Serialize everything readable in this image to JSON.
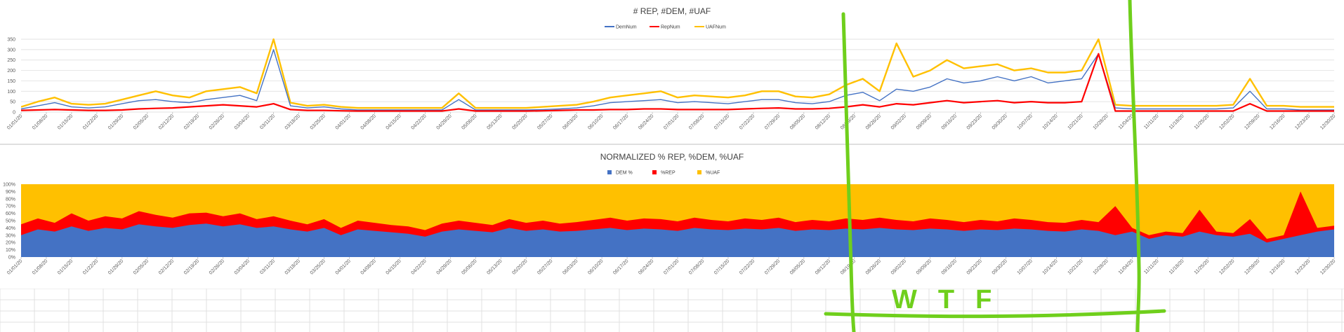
{
  "colors": {
    "dem": "#4472c4",
    "rep": "#ff0000",
    "uaf": "#ffc000",
    "annotation": "#6fcf1c",
    "grid": "#d9d9d9",
    "cellgrid": "#e0e0e0"
  },
  "annotation_text": "WTF",
  "chart_data": [
    {
      "type": "line",
      "title": "# REP, #DEM, #UAF",
      "ylim": [
        0,
        350
      ],
      "yticks": [
        "0",
        "50",
        "100",
        "150",
        "200",
        "250",
        "300",
        "350"
      ],
      "x_tick_labels": [
        "01/01/20",
        "01/08/20",
        "01/15/20",
        "01/22/20",
        "01/29/20",
        "02/05/20",
        "02/12/20",
        "02/19/20",
        "02/26/20",
        "03/04/20",
        "03/11/20",
        "03/18/20",
        "03/25/20",
        "04/01/20",
        "04/08/20",
        "04/15/20",
        "04/22/20",
        "04/29/20",
        "05/06/20",
        "05/13/20",
        "05/20/20",
        "05/27/20",
        "06/03/20",
        "06/10/20",
        "06/17/20",
        "06/24/20",
        "07/01/20",
        "07/08/20",
        "07/15/20",
        "07/22/20",
        "07/29/20",
        "08/05/20",
        "08/12/20",
        "08/19/20",
        "08/26/20",
        "09/02/20",
        "09/09/20",
        "09/16/20",
        "09/23/20",
        "09/30/20",
        "10/07/20",
        "10/14/20",
        "10/21/20",
        "10/28/20",
        "11/04/20",
        "11/11/20",
        "11/18/20",
        "11/25/20",
        "12/02/20",
        "12/09/20",
        "12/16/20",
        "12/23/20",
        "12/30/20"
      ],
      "legend": [
        {
          "key": "dem",
          "label": "DemNum"
        },
        {
          "key": "rep",
          "label": "RepNum"
        },
        {
          "key": "uaf",
          "label": "UAFNum"
        }
      ],
      "series": [
        {
          "name": "DemNum",
          "key": "dem",
          "values": [
            15,
            30,
            45,
            25,
            20,
            25,
            40,
            55,
            60,
            50,
            45,
            60,
            70,
            80,
            55,
            300,
            30,
            20,
            25,
            15,
            10,
            10,
            10,
            10,
            10,
            10,
            60,
            10,
            10,
            10,
            10,
            12,
            15,
            20,
            30,
            45,
            50,
            55,
            60,
            45,
            50,
            45,
            40,
            50,
            60,
            60,
            45,
            40,
            50,
            80,
            95,
            55,
            110,
            100,
            120,
            160,
            140,
            150,
            170,
            150,
            170,
            140,
            150,
            160,
            280,
            20,
            15,
            15,
            15,
            15,
            15,
            15,
            20,
            100,
            15,
            15,
            10,
            10,
            10
          ]
        },
        {
          "name": "RepNum",
          "key": "rep",
          "values": [
            8,
            10,
            12,
            10,
            8,
            8,
            10,
            15,
            18,
            20,
            25,
            30,
            35,
            30,
            25,
            40,
            12,
            8,
            8,
            6,
            5,
            5,
            5,
            5,
            5,
            5,
            15,
            5,
            5,
            5,
            5,
            6,
            8,
            10,
            10,
            12,
            12,
            15,
            15,
            12,
            12,
            12,
            12,
            15,
            18,
            20,
            15,
            15,
            18,
            25,
            35,
            25,
            40,
            35,
            45,
            55,
            45,
            50,
            55,
            45,
            50,
            45,
            45,
            50,
            280,
            5,
            5,
            5,
            5,
            5,
            5,
            5,
            5,
            40,
            5,
            5,
            5,
            5,
            5
          ]
        },
        {
          "name": "UAFNum",
          "key": "uaf",
          "values": [
            25,
            50,
            70,
            40,
            35,
            40,
            60,
            80,
            100,
            80,
            70,
            100,
            110,
            120,
            90,
            350,
            45,
            30,
            35,
            25,
            20,
            20,
            20,
            20,
            20,
            20,
            90,
            20,
            20,
            20,
            20,
            25,
            30,
            35,
            50,
            70,
            80,
            90,
            100,
            70,
            80,
            75,
            70,
            80,
            100,
            100,
            75,
            70,
            85,
            130,
            160,
            100,
            330,
            170,
            200,
            250,
            210,
            220,
            230,
            200,
            210,
            190,
            190,
            200,
            350,
            35,
            30,
            30,
            30,
            30,
            30,
            30,
            35,
            160,
            30,
            30,
            25,
            25,
            25
          ]
        }
      ]
    },
    {
      "type": "area",
      "stacked": true,
      "title": "NORMALIZED % REP, %DEM, %UAF",
      "ylim": [
        0,
        100
      ],
      "yticks": [
        "0%",
        "10%",
        "20%",
        "30%",
        "40%",
        "50%",
        "60%",
        "70%",
        "80%",
        "90%",
        "100%"
      ],
      "x_tick_labels": [
        "01/01/20",
        "01/08/20",
        "01/15/20",
        "01/22/20",
        "01/29/20",
        "02/05/20",
        "02/12/20",
        "02/19/20",
        "02/26/20",
        "03/04/20",
        "03/11/20",
        "03/18/20",
        "03/25/20",
        "04/01/20",
        "04/08/20",
        "04/15/20",
        "04/22/20",
        "04/29/20",
        "05/06/20",
        "05/13/20",
        "05/20/20",
        "05/27/20",
        "06/03/20",
        "06/10/20",
        "06/17/20",
        "06/24/20",
        "07/01/20",
        "07/08/20",
        "07/15/20",
        "07/22/20",
        "07/29/20",
        "08/05/20",
        "08/12/20",
        "08/19/20",
        "08/26/20",
        "09/02/20",
        "09/09/20",
        "09/16/20",
        "09/23/20",
        "09/30/20",
        "10/07/20",
        "10/14/20",
        "10/21/20",
        "10/28/20",
        "11/04/20",
        "11/11/20",
        "11/18/20",
        "11/25/20",
        "12/02/20",
        "12/09/20",
        "12/16/20",
        "12/23/20",
        "12/30/20"
      ],
      "legend": [
        {
          "key": "dem",
          "label": "DEM %"
        },
        {
          "key": "rep",
          "label": "%REP"
        },
        {
          "key": "uaf",
          "label": "%UAF"
        }
      ],
      "series": [
        {
          "name": "DEM %",
          "key": "dem",
          "values": [
            30,
            38,
            35,
            42,
            36,
            40,
            38,
            45,
            42,
            40,
            44,
            46,
            42,
            45,
            40,
            42,
            38,
            35,
            40,
            30,
            38,
            36,
            34,
            32,
            28,
            35,
            38,
            36,
            34,
            40,
            36,
            38,
            35,
            36,
            38,
            40,
            37,
            39,
            38,
            36,
            40,
            38,
            37,
            39,
            38,
            40,
            36,
            38,
            37,
            39,
            38,
            40,
            38,
            37,
            39,
            38,
            36,
            38,
            37,
            39,
            38,
            36,
            35,
            38,
            36,
            30,
            35,
            25,
            30,
            28,
            35,
            30,
            28,
            32,
            20,
            25,
            30,
            35,
            38
          ]
        },
        {
          "name": "%REP",
          "key": "rep",
          "values": [
            15,
            15,
            12,
            18,
            14,
            16,
            15,
            18,
            16,
            14,
            16,
            15,
            14,
            15,
            12,
            14,
            12,
            10,
            12,
            10,
            12,
            11,
            10,
            10,
            9,
            11,
            12,
            11,
            10,
            12,
            11,
            12,
            11,
            12,
            13,
            14,
            13,
            14,
            14,
            13,
            14,
            13,
            12,
            14,
            13,
            14,
            12,
            13,
            12,
            14,
            13,
            14,
            13,
            12,
            14,
            13,
            12,
            13,
            12,
            14,
            13,
            12,
            12,
            13,
            12,
            40,
            5,
            5,
            5,
            5,
            30,
            5,
            5,
            20,
            5,
            5,
            60,
            5,
            5
          ]
        },
        {
          "name": "%UAF",
          "key": "uaf",
          "values": [
            55,
            47,
            53,
            40,
            50,
            44,
            47,
            37,
            42,
            46,
            40,
            39,
            44,
            40,
            48,
            44,
            50,
            55,
            48,
            60,
            50,
            53,
            56,
            58,
            63,
            54,
            50,
            53,
            56,
            48,
            53,
            50,
            54,
            52,
            49,
            46,
            50,
            47,
            48,
            51,
            46,
            49,
            51,
            47,
            49,
            46,
            52,
            49,
            51,
            47,
            49,
            46,
            49,
            51,
            47,
            49,
            52,
            49,
            51,
            47,
            49,
            52,
            53,
            49,
            52,
            30,
            60,
            70,
            65,
            67,
            35,
            65,
            67,
            48,
            75,
            70,
            10,
            60,
            57
          ]
        }
      ]
    }
  ]
}
